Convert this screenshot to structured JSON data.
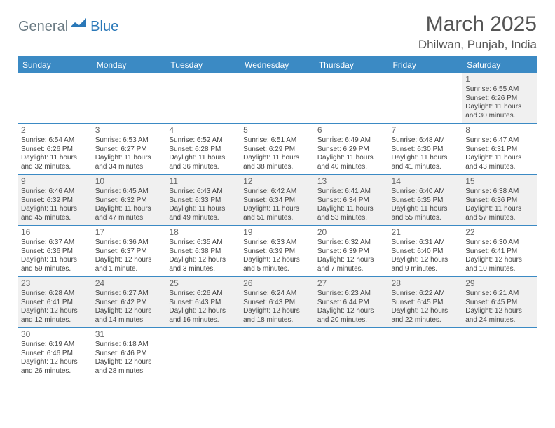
{
  "logo": {
    "part1": "General",
    "part2": "Blue",
    "shape_color": "#2a78b8"
  },
  "title": "March 2025",
  "location": "Dhilwan, Punjab, India",
  "colors": {
    "header_bg": "#3b8ac4",
    "header_text": "#ffffff",
    "rule": "#3b8ac4",
    "row_alt": "#f0f0f0",
    "text": "#444444",
    "logo1": "#6b7b84",
    "logo2": "#2a78b8"
  },
  "typography": {
    "title_fontsize": 30,
    "location_fontsize": 17,
    "dayhead_fontsize": 12,
    "cell_fontsize": 10
  },
  "day_headers": [
    "Sunday",
    "Monday",
    "Tuesday",
    "Wednesday",
    "Thursday",
    "Friday",
    "Saturday"
  ],
  "weeks": [
    [
      null,
      null,
      null,
      null,
      null,
      null,
      {
        "n": "1",
        "sunrise": "6:55 AM",
        "sunset": "6:26 PM",
        "daylight": "11 hours and 30 minutes."
      }
    ],
    [
      {
        "n": "2",
        "sunrise": "6:54 AM",
        "sunset": "6:26 PM",
        "daylight": "11 hours and 32 minutes."
      },
      {
        "n": "3",
        "sunrise": "6:53 AM",
        "sunset": "6:27 PM",
        "daylight": "11 hours and 34 minutes."
      },
      {
        "n": "4",
        "sunrise": "6:52 AM",
        "sunset": "6:28 PM",
        "daylight": "11 hours and 36 minutes."
      },
      {
        "n": "5",
        "sunrise": "6:51 AM",
        "sunset": "6:29 PM",
        "daylight": "11 hours and 38 minutes."
      },
      {
        "n": "6",
        "sunrise": "6:49 AM",
        "sunset": "6:29 PM",
        "daylight": "11 hours and 40 minutes."
      },
      {
        "n": "7",
        "sunrise": "6:48 AM",
        "sunset": "6:30 PM",
        "daylight": "11 hours and 41 minutes."
      },
      {
        "n": "8",
        "sunrise": "6:47 AM",
        "sunset": "6:31 PM",
        "daylight": "11 hours and 43 minutes."
      }
    ],
    [
      {
        "n": "9",
        "sunrise": "6:46 AM",
        "sunset": "6:32 PM",
        "daylight": "11 hours and 45 minutes."
      },
      {
        "n": "10",
        "sunrise": "6:45 AM",
        "sunset": "6:32 PM",
        "daylight": "11 hours and 47 minutes."
      },
      {
        "n": "11",
        "sunrise": "6:43 AM",
        "sunset": "6:33 PM",
        "daylight": "11 hours and 49 minutes."
      },
      {
        "n": "12",
        "sunrise": "6:42 AM",
        "sunset": "6:34 PM",
        "daylight": "11 hours and 51 minutes."
      },
      {
        "n": "13",
        "sunrise": "6:41 AM",
        "sunset": "6:34 PM",
        "daylight": "11 hours and 53 minutes."
      },
      {
        "n": "14",
        "sunrise": "6:40 AM",
        "sunset": "6:35 PM",
        "daylight": "11 hours and 55 minutes."
      },
      {
        "n": "15",
        "sunrise": "6:38 AM",
        "sunset": "6:36 PM",
        "daylight": "11 hours and 57 minutes."
      }
    ],
    [
      {
        "n": "16",
        "sunrise": "6:37 AM",
        "sunset": "6:36 PM",
        "daylight": "11 hours and 59 minutes."
      },
      {
        "n": "17",
        "sunrise": "6:36 AM",
        "sunset": "6:37 PM",
        "daylight": "12 hours and 1 minute."
      },
      {
        "n": "18",
        "sunrise": "6:35 AM",
        "sunset": "6:38 PM",
        "daylight": "12 hours and 3 minutes."
      },
      {
        "n": "19",
        "sunrise": "6:33 AM",
        "sunset": "6:39 PM",
        "daylight": "12 hours and 5 minutes."
      },
      {
        "n": "20",
        "sunrise": "6:32 AM",
        "sunset": "6:39 PM",
        "daylight": "12 hours and 7 minutes."
      },
      {
        "n": "21",
        "sunrise": "6:31 AM",
        "sunset": "6:40 PM",
        "daylight": "12 hours and 9 minutes."
      },
      {
        "n": "22",
        "sunrise": "6:30 AM",
        "sunset": "6:41 PM",
        "daylight": "12 hours and 10 minutes."
      }
    ],
    [
      {
        "n": "23",
        "sunrise": "6:28 AM",
        "sunset": "6:41 PM",
        "daylight": "12 hours and 12 minutes."
      },
      {
        "n": "24",
        "sunrise": "6:27 AM",
        "sunset": "6:42 PM",
        "daylight": "12 hours and 14 minutes."
      },
      {
        "n": "25",
        "sunrise": "6:26 AM",
        "sunset": "6:43 PM",
        "daylight": "12 hours and 16 minutes."
      },
      {
        "n": "26",
        "sunrise": "6:24 AM",
        "sunset": "6:43 PM",
        "daylight": "12 hours and 18 minutes."
      },
      {
        "n": "27",
        "sunrise": "6:23 AM",
        "sunset": "6:44 PM",
        "daylight": "12 hours and 20 minutes."
      },
      {
        "n": "28",
        "sunrise": "6:22 AM",
        "sunset": "6:45 PM",
        "daylight": "12 hours and 22 minutes."
      },
      {
        "n": "29",
        "sunrise": "6:21 AM",
        "sunset": "6:45 PM",
        "daylight": "12 hours and 24 minutes."
      }
    ],
    [
      {
        "n": "30",
        "sunrise": "6:19 AM",
        "sunset": "6:46 PM",
        "daylight": "12 hours and 26 minutes."
      },
      {
        "n": "31",
        "sunrise": "6:18 AM",
        "sunset": "6:46 PM",
        "daylight": "12 hours and 28 minutes."
      },
      null,
      null,
      null,
      null,
      null
    ]
  ],
  "labels": {
    "sunrise": "Sunrise:",
    "sunset": "Sunset:",
    "daylight": "Daylight:"
  }
}
